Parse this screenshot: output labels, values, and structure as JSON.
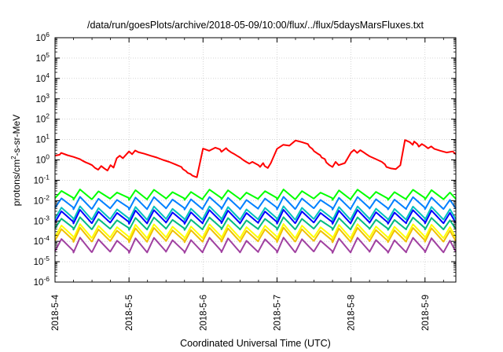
{
  "chart_data": {
    "type": "line",
    "title": "/data/run/goesPlots/archive/2018-05-09/10:00/flux/../flux/5daysMarsFluxes.txt",
    "xlabel": "Coordinated Universal Time (UTC)",
    "ylabel_base": "protons/cm",
    "ylabel_sup": "2",
    "ylabel_rest": "-s-sr-MeV",
    "x_ticks": [
      "2018-5-4",
      "2018-5-5",
      "2018-5-6",
      "2018-5-7",
      "2018-5-8",
      "2018-5-9"
    ],
    "xlim": [
      "2018-05-04T00:00",
      "2018-05-09T10:00"
    ],
    "y_scale": "log",
    "ylim": [
      1e-06,
      1000000.0
    ],
    "y_ticks": [
      {
        "base": "10",
        "exp": "-6"
      },
      {
        "base": "10",
        "exp": "-5"
      },
      {
        "base": "10",
        "exp": "-4"
      },
      {
        "base": "10",
        "exp": "-3"
      },
      {
        "base": "10",
        "exp": "-2"
      },
      {
        "base": "10",
        "exp": "-1"
      },
      {
        "base": "10",
        "exp": "0"
      },
      {
        "base": "10",
        "exp": "1"
      },
      {
        "base": "10",
        "exp": "2"
      },
      {
        "base": "10",
        "exp": "3"
      },
      {
        "base": "10",
        "exp": "4"
      },
      {
        "base": "10",
        "exp": "5"
      },
      {
        "base": "10",
        "exp": "6"
      }
    ],
    "grid": true,
    "series": [
      {
        "color": "#ff0000",
        "x": [
          "2018-05-04T00:00",
          "2018-05-04T01:30",
          "2018-05-04T02:00",
          "2018-05-04T04:00",
          "2018-05-04T06:00",
          "2018-05-04T08:00",
          "2018-05-04T09:00",
          "2018-05-04T10:00",
          "2018-05-04T11:00",
          "2018-05-04T12:00",
          "2018-05-04T13:00",
          "2018-05-04T14:00",
          "2018-05-04T15:00",
          "2018-05-04T16:00",
          "2018-05-04T17:00",
          "2018-05-04T18:00",
          "2018-05-04T19:00",
          "2018-05-04T20:00",
          "2018-05-04T21:00",
          "2018-05-04T22:00",
          "2018-05-05T00:00",
          "2018-05-05T01:00",
          "2018-05-05T02:00",
          "2018-05-05T03:00",
          "2018-05-05T05:00",
          "2018-05-05T07:00",
          "2018-05-05T09:00",
          "2018-05-05T11:00",
          "2018-05-05T13:00",
          "2018-05-05T15:00",
          "2018-05-05T17:00",
          "2018-05-05T17:30",
          "2018-05-05T18:30",
          "2018-05-05T19:00",
          "2018-05-05T20:00",
          "2018-05-05T20:30",
          "2018-05-05T21:30",
          "2018-05-05T22:00",
          "2018-05-06T00:00",
          "2018-05-06T02:00",
          "2018-05-06T04:00",
          "2018-05-06T05:30",
          "2018-05-06T06:00",
          "2018-05-06T07:30",
          "2018-05-06T08:00",
          "2018-05-06T09:00",
          "2018-05-06T10:00",
          "2018-05-06T11:00",
          "2018-05-06T12:00",
          "2018-05-06T13:00",
          "2018-05-06T14:00",
          "2018-05-06T15:00",
          "2018-05-06T16:00",
          "2018-05-06T18:00",
          "2018-05-06T18:30",
          "2018-05-06T19:30",
          "2018-05-06T20:00",
          "2018-05-06T21:00",
          "2018-05-06T22:00",
          "2018-05-07T00:00",
          "2018-05-07T02:00",
          "2018-05-07T04:00",
          "2018-05-07T06:00",
          "2018-05-07T08:00",
          "2018-05-07T10:00",
          "2018-05-07T10:30",
          "2018-05-07T11:30",
          "2018-05-07T12:00",
          "2018-05-07T13:00",
          "2018-05-07T14:00",
          "2018-05-07T14:30",
          "2018-05-07T15:30",
          "2018-05-07T16:00",
          "2018-05-07T17:00",
          "2018-05-07T18:00",
          "2018-05-07T19:00",
          "2018-05-07T20:00",
          "2018-05-07T22:00",
          "2018-05-08T00:00",
          "2018-05-08T01:00",
          "2018-05-08T02:00",
          "2018-05-08T03:00",
          "2018-05-08T04:00",
          "2018-05-08T05:00",
          "2018-05-08T06:00",
          "2018-05-08T08:00",
          "2018-05-08T10:00",
          "2018-05-08T11:00",
          "2018-05-08T11:30",
          "2018-05-08T13:00",
          "2018-05-08T14:30",
          "2018-05-08T16:00",
          "2018-05-08T17:30",
          "2018-05-08T19:00",
          "2018-05-08T20:00",
          "2018-05-08T20:30",
          "2018-05-08T21:30",
          "2018-05-08T22:00",
          "2018-05-08T23:00",
          "2018-05-09T00:00",
          "2018-05-09T01:00",
          "2018-05-09T02:00",
          "2018-05-09T03:00",
          "2018-05-09T05:00",
          "2018-05-09T07:00",
          "2018-05-09T09:00",
          "2018-05-09T10:00"
        ],
        "y": [
          1.6,
          1.8,
          2.2,
          1.7,
          1.4,
          1.1,
          0.9,
          0.75,
          0.65,
          0.55,
          0.4,
          0.33,
          0.5,
          0.38,
          0.3,
          0.55,
          0.42,
          1.2,
          1.6,
          1.2,
          2.6,
          1.9,
          2.9,
          2.4,
          2.0,
          1.6,
          1.3,
          1.0,
          0.8,
          0.6,
          0.45,
          0.35,
          0.28,
          0.23,
          0.2,
          0.17,
          0.15,
          0.14,
          3.6,
          2.8,
          4.0,
          3.3,
          2.5,
          3.8,
          3.1,
          2.4,
          2.0,
          1.6,
          1.3,
          1.0,
          0.8,
          0.65,
          0.8,
          0.55,
          0.45,
          0.7,
          0.5,
          0.4,
          0.7,
          3.5,
          5.5,
          5.0,
          9.0,
          7.5,
          6.0,
          4.5,
          3.4,
          2.7,
          2.1,
          1.7,
          1.3,
          1.1,
          0.75,
          0.55,
          0.45,
          0.8,
          0.55,
          0.7,
          2.3,
          3.1,
          2.2,
          3.0,
          2.4,
          1.9,
          1.5,
          1.1,
          0.8,
          0.6,
          0.45,
          0.38,
          0.35,
          0.55,
          9.5,
          7.5,
          5.5,
          8.0,
          6.0,
          4.5,
          6.0,
          4.8,
          3.7,
          4.6,
          3.5,
          2.8,
          2.3,
          2.6,
          1.9
        ]
      }
    ],
    "periodic_series": [
      {
        "color": "#00ff00",
        "period_hours": 6,
        "low": 0.012,
        "high": 0.03,
        "x_start": "2018-05-04T00:00",
        "x_end": "2018-05-09T10:00"
      },
      {
        "color": "#0080ff",
        "period_hours": 6,
        "low": 0.004,
        "high": 0.013,
        "x_start": "2018-05-04T00:00",
        "x_end": "2018-05-09T10:00"
      },
      {
        "color": "#00c0c0",
        "period_hours": 6,
        "low": 0.0012,
        "high": 0.0045,
        "x_start": "2018-05-04T00:00",
        "x_end": "2018-05-09T10:00"
      },
      {
        "color": "#0000ff",
        "period_hours": 6,
        "low": 0.0008,
        "high": 0.003,
        "x_start": "2018-05-04T00:00",
        "x_end": "2018-05-09T10:00"
      },
      {
        "color": "#00bb80",
        "period_hours": 6,
        "low": 0.0004,
        "high": 0.0013,
        "x_start": "2018-05-04T00:00",
        "x_end": "2018-05-09T10:00"
      },
      {
        "color": "#ffff00",
        "period_hours": 6,
        "low": 0.00015,
        "high": 0.0006,
        "x_start": "2018-05-04T00:00",
        "x_end": "2018-05-09T10:00"
      },
      {
        "color": "#f0c000",
        "period_hours": 6,
        "low": 0.0001,
        "high": 0.0004,
        "x_start": "2018-05-04T00:00",
        "x_end": "2018-05-09T10:00"
      },
      {
        "color": "#a040a0",
        "period_hours": 6,
        "low": 3e-05,
        "high": 0.00013,
        "x_start": "2018-05-04T00:00",
        "x_end": "2018-05-09T10:00"
      }
    ]
  }
}
